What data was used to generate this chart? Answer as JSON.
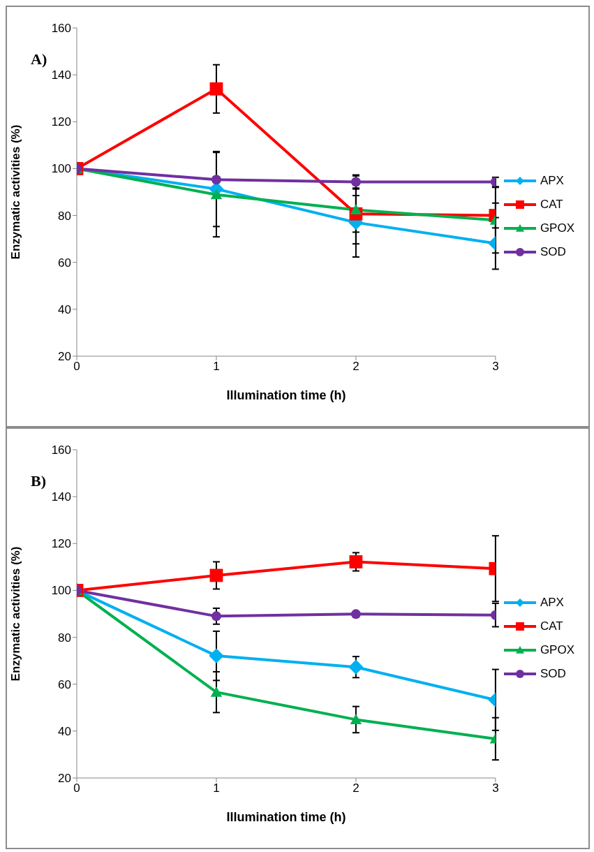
{
  "chart_data": [
    {
      "type": "line",
      "title": "A)",
      "xlabel": "Illumination time (h)",
      "ylabel": "Enzymatic activities (%)",
      "x": [
        0,
        1,
        2,
        3
      ],
      "xlim": [
        0,
        3
      ],
      "xticks": [
        0,
        1,
        2,
        3
      ],
      "ylim": [
        20,
        160
      ],
      "yticks": [
        20,
        40,
        60,
        80,
        100,
        120,
        140,
        160
      ],
      "grid": false,
      "legend": "right",
      "series": [
        {
          "name": "APX",
          "color": "#00b0f0",
          "marker": "diamond",
          "values": [
            100,
            91.3,
            77,
            68.1
          ],
          "errors": [
            null,
            16,
            14.7,
            11
          ]
        },
        {
          "name": "CAT",
          "color": "#ff0000",
          "marker": "square",
          "values": [
            100,
            134,
            80.7,
            80
          ],
          "errors": [
            null,
            10.3,
            7.8,
            5.3
          ]
        },
        {
          "name": "GPOX",
          "color": "#00b050",
          "marker": "triangle",
          "values": [
            100,
            88.9,
            82.4,
            78
          ],
          "errors": [
            null,
            18,
            14.5,
            14
          ]
        },
        {
          "name": "SOD",
          "color": "#7030a0",
          "marker": "circle",
          "values": [
            100,
            95.3,
            94.3,
            94.3
          ],
          "errors": [
            null,
            null,
            3,
            2
          ]
        }
      ]
    },
    {
      "type": "line",
      "title": "B)",
      "xlabel": "Illumination time (h)",
      "ylabel": "Enzymatic activities (%)",
      "x": [
        0,
        1,
        2,
        3
      ],
      "xlim": [
        0,
        3
      ],
      "xticks": [
        0,
        1,
        2,
        3
      ],
      "ylim": [
        20,
        160
      ],
      "yticks": [
        20,
        40,
        60,
        80,
        100,
        120,
        140,
        160
      ],
      "grid": false,
      "legend": "right",
      "series": [
        {
          "name": "APX",
          "color": "#00b0f0",
          "marker": "diamond",
          "values": [
            100,
            72.1,
            67.3,
            53.3
          ],
          "errors": [
            null,
            10.5,
            4.5,
            13
          ]
        },
        {
          "name": "CAT",
          "color": "#ff0000",
          "marker": "square",
          "values": [
            100,
            106.4,
            112.2,
            109.3
          ],
          "errors": [
            null,
            5.8,
            3.9,
            14
          ]
        },
        {
          "name": "GPOX",
          "color": "#00b050",
          "marker": "triangle",
          "values": [
            100,
            56.6,
            44.9,
            36.7
          ],
          "errors": [
            null,
            8.7,
            5.6,
            9
          ]
        },
        {
          "name": "SOD",
          "color": "#7030a0",
          "marker": "circle",
          "values": [
            100,
            89,
            89.9,
            89.5
          ],
          "errors": [
            null,
            3.4,
            null,
            5
          ]
        }
      ]
    }
  ]
}
